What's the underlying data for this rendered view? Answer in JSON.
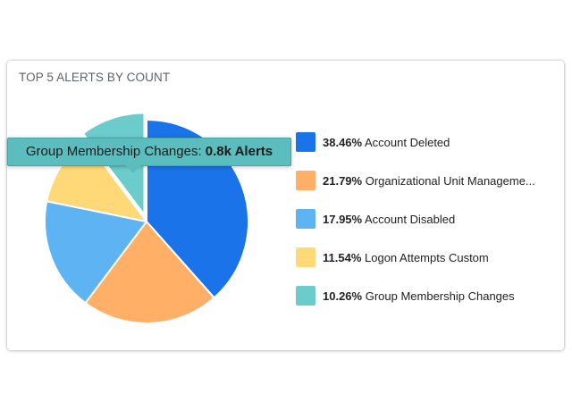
{
  "widget": {
    "title": "TOP 5 ALERTS BY COUNT"
  },
  "chart_data": {
    "type": "pie",
    "title": "TOP 5 ALERTS BY COUNT",
    "start_angle_deg": 0,
    "highlighted_index": 4,
    "categories": [
      "Account Deleted",
      "Organizational Unit Manageme...",
      "Account Disabled",
      "Logon Attempts Custom",
      "Group Membership Changes"
    ],
    "values": [
      38.46,
      21.79,
      17.95,
      11.54,
      10.26
    ],
    "colors": [
      "#1a73e8",
      "#ffb066",
      "#5eb4f2",
      "#ffd978",
      "#6ccccc"
    ],
    "legend": [
      {
        "pct": "38.46%",
        "label": "Account Deleted"
      },
      {
        "pct": "21.79%",
        "label": "Organizational Unit Manageme..."
      },
      {
        "pct": "17.95%",
        "label": "Account Disabled"
      },
      {
        "pct": "11.54%",
        "label": "Logon Attempts Custom"
      },
      {
        "pct": "10.26%",
        "label": "Group Membership Changes"
      }
    ],
    "tooltip": {
      "label": "Group Membership Changes: ",
      "value": "0.8k Alerts"
    }
  }
}
